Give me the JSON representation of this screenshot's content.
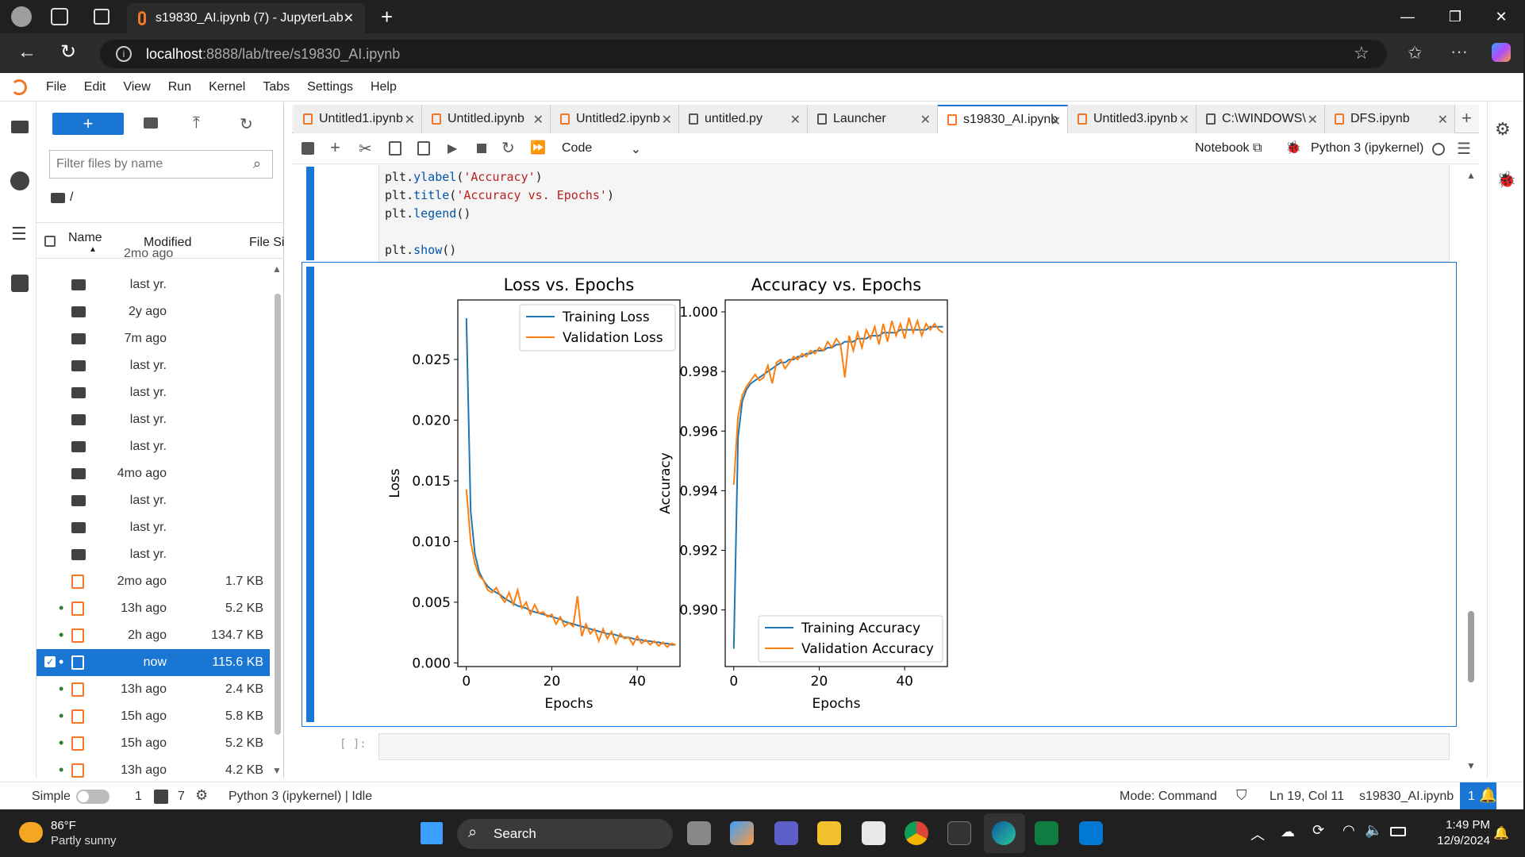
{
  "browser": {
    "tab_title": "s19830_AI.ipynb (7) - JupyterLab",
    "url_host": "localhost",
    "url_rest": ":8888/lab/tree/s19830_AI.ipynb"
  },
  "menu": [
    "File",
    "Edit",
    "View",
    "Run",
    "Kernel",
    "Tabs",
    "Settings",
    "Help"
  ],
  "file_browser": {
    "filter_placeholder": "Filter files by name",
    "path": "/",
    "col_name": "Name",
    "col_modified": "Modified",
    "col_size": "File Si",
    "partial_top": "2mo ago",
    "rows": [
      {
        "modified": "last yr.",
        "size": "",
        "type": "folder",
        "running": false,
        "selected": false
      },
      {
        "modified": "2y ago",
        "size": "",
        "type": "folder",
        "running": false,
        "selected": false
      },
      {
        "modified": "7m ago",
        "size": "",
        "type": "folder",
        "running": false,
        "selected": false
      },
      {
        "modified": "last yr.",
        "size": "",
        "type": "folder",
        "running": false,
        "selected": false
      },
      {
        "modified": "last yr.",
        "size": "",
        "type": "folder",
        "running": false,
        "selected": false
      },
      {
        "modified": "last yr.",
        "size": "",
        "type": "folder",
        "running": false,
        "selected": false
      },
      {
        "modified": "last yr.",
        "size": "",
        "type": "folder",
        "running": false,
        "selected": false
      },
      {
        "modified": "4mo ago",
        "size": "",
        "type": "folder",
        "running": false,
        "selected": false
      },
      {
        "modified": "last yr.",
        "size": "",
        "type": "folder",
        "running": false,
        "selected": false
      },
      {
        "modified": "last yr.",
        "size": "",
        "type": "folder",
        "running": false,
        "selected": false
      },
      {
        "modified": "last yr.",
        "size": "",
        "type": "folder",
        "running": false,
        "selected": false
      },
      {
        "modified": "2mo ago",
        "size": "1.7 KB",
        "type": "notebook",
        "running": false,
        "selected": false
      },
      {
        "modified": "13h ago",
        "size": "5.2 KB",
        "type": "notebook",
        "running": true,
        "selected": false
      },
      {
        "modified": "2h ago",
        "size": "134.7 KB",
        "type": "notebook",
        "running": true,
        "selected": false
      },
      {
        "modified": "now",
        "size": "115.6 KB",
        "type": "notebook",
        "running": true,
        "selected": true
      },
      {
        "modified": "13h ago",
        "size": "2.4 KB",
        "type": "notebook",
        "running": true,
        "selected": false
      },
      {
        "modified": "15h ago",
        "size": "5.8 KB",
        "type": "notebook",
        "running": true,
        "selected": false
      },
      {
        "modified": "15h ago",
        "size": "5.2 KB",
        "type": "notebook",
        "running": true,
        "selected": false
      },
      {
        "modified": "13h ago",
        "size": "4.2 KB",
        "type": "notebook",
        "running": true,
        "selected": false
      }
    ]
  },
  "doc_tabs": [
    {
      "label": "Untitled1.ipynb",
      "icon": "notebook-icon",
      "active": false,
      "close": "✕"
    },
    {
      "label": "Untitled.ipynb",
      "icon": "notebook-icon",
      "active": false,
      "close": "✕"
    },
    {
      "label": "Untitled2.ipynb",
      "icon": "notebook-icon",
      "active": false,
      "close": "✕"
    },
    {
      "label": "untitled.py",
      "icon": "text-file-icon",
      "active": false,
      "close": "✕"
    },
    {
      "label": "Launcher",
      "icon": "launcher-icon",
      "active": false,
      "close": "✕"
    },
    {
      "label": "s19830_AI.ipynb",
      "icon": "notebook-icon",
      "active": true,
      "close": "✕"
    },
    {
      "label": "Untitled3.ipynb",
      "icon": "notebook-icon",
      "active": false,
      "close": "✕"
    },
    {
      "label": "C:\\WINDOWS\\",
      "icon": "terminal-icon",
      "active": false,
      "close": "✕"
    },
    {
      "label": "DFS.ipynb",
      "icon": "notebook-icon",
      "active": false,
      "close": "✕"
    }
  ],
  "notebook_toolbar": {
    "cell_type": "Code",
    "notebook_label": "Notebook",
    "kernel": "Python 3 (ipykernel)"
  },
  "code_lines": [
    {
      "fn": "plt",
      "method": "ylabel",
      "arg": "'Accuracy'"
    },
    {
      "fn": "plt",
      "method": "title",
      "arg": "'Accuracy vs. Epochs'"
    },
    {
      "fn": "plt",
      "method": "legend",
      "arg": ""
    },
    {
      "fn": "",
      "method": "",
      "arg": ""
    },
    {
      "fn": "plt",
      "method": "show",
      "arg": ""
    }
  ],
  "empty_prompt": "[ ]:",
  "status": {
    "mode_label": "Simple",
    "num1": "1",
    "num2": "7",
    "kernel_status": "Python 3 (ipykernel) | Idle",
    "mode": "Mode: Command",
    "cursor": "Ln 19, Col 11",
    "file": "s19830_AI.ipynb",
    "notifications": "1"
  },
  "taskbar": {
    "temp": "86°F",
    "weather": "Partly sunny",
    "search": "Search",
    "time": "1:49 PM",
    "date": "12/9/2024"
  },
  "chart_data": [
    {
      "type": "line",
      "title": "Loss vs. Epochs",
      "xlabel": "Epochs",
      "ylabel": "Loss",
      "xlim": [
        -2,
        50
      ],
      "ylim": [
        -0.0003,
        0.0299
      ],
      "xticks": [
        "0",
        "20",
        "40"
      ],
      "yticks": [
        "0.000",
        "0.005",
        "0.010",
        "0.015",
        "0.020",
        "0.025"
      ],
      "legend": "top-right",
      "series": [
        {
          "name": "Training Loss",
          "color": "#1f77b4",
          "values": [
            0.0284,
            0.0125,
            0.009,
            0.0075,
            0.0068,
            0.0063,
            0.006,
            0.0058,
            0.0056,
            0.0053,
            0.0051,
            0.0049,
            0.0047,
            0.0046,
            0.0045,
            0.0043,
            0.0042,
            0.0041,
            0.004,
            0.0039,
            0.0038,
            0.0037,
            0.0036,
            0.0034,
            0.0033,
            0.0032,
            0.0031,
            0.003,
            0.0029,
            0.0028,
            0.0027,
            0.0026,
            0.0025,
            0.0024,
            0.0024,
            0.0023,
            0.0022,
            0.0021,
            0.0021,
            0.002,
            0.0019,
            0.0019,
            0.0018,
            0.0018,
            0.0017,
            0.0017,
            0.0016,
            0.0016,
            0.0015,
            0.0015
          ]
        },
        {
          "name": "Validation Loss",
          "color": "#ff7f0e",
          "values": [
            0.0143,
            0.01,
            0.0082,
            0.0072,
            0.0068,
            0.006,
            0.0058,
            0.0062,
            0.0055,
            0.005,
            0.0058,
            0.0048,
            0.006,
            0.0045,
            0.005,
            0.004,
            0.0048,
            0.0041,
            0.0042,
            0.0038,
            0.004,
            0.0032,
            0.0038,
            0.003,
            0.0033,
            0.003,
            0.0055,
            0.0022,
            0.0032,
            0.0024,
            0.0028,
            0.0018,
            0.0028,
            0.002,
            0.0026,
            0.0016,
            0.0024,
            0.002,
            0.0021,
            0.0015,
            0.0022,
            0.0016,
            0.0019,
            0.0015,
            0.0018,
            0.0014,
            0.0017,
            0.0013,
            0.0016,
            0.0015
          ]
        }
      ]
    },
    {
      "type": "line",
      "title": "Accuracy vs. Epochs",
      "xlabel": "Epochs",
      "ylabel": "Accuracy",
      "xlim": [
        -2,
        50
      ],
      "ylim": [
        0.9881,
        1.0004
      ],
      "xticks": [
        "0",
        "20",
        "40"
      ],
      "yticks": [
        "0.990",
        "0.992",
        "0.994",
        "0.996",
        "0.998",
        "1.000"
      ],
      "legend": "bottom-right",
      "series": [
        {
          "name": "Training Accuracy",
          "color": "#1f77b4",
          "values": [
            0.9887,
            0.9958,
            0.997,
            0.9974,
            0.9976,
            0.9977,
            0.9978,
            0.9979,
            0.998,
            0.9981,
            0.9982,
            0.9983,
            0.9983,
            0.9984,
            0.9984,
            0.9985,
            0.9985,
            0.9986,
            0.9986,
            0.9987,
            0.9987,
            0.9987,
            0.9988,
            0.9988,
            0.9989,
            0.9989,
            0.999,
            0.999,
            0.999,
            0.9991,
            0.9991,
            0.9991,
            0.9992,
            0.9992,
            0.9992,
            0.9993,
            0.9993,
            0.9993,
            0.9993,
            0.9994,
            0.9994,
            0.9994,
            0.9994,
            0.9994,
            0.9994,
            0.9994,
            0.9995,
            0.9995,
            0.9995,
            0.9995
          ]
        },
        {
          "name": "Validation Accuracy",
          "color": "#ff7f0e",
          "values": [
            0.9942,
            0.9965,
            0.9972,
            0.9975,
            0.9977,
            0.9979,
            0.9977,
            0.9978,
            0.9982,
            0.9976,
            0.9983,
            0.9984,
            0.9981,
            0.9983,
            0.9985,
            0.9984,
            0.9986,
            0.9985,
            0.9987,
            0.9986,
            0.9988,
            0.9987,
            0.999,
            0.9988,
            0.9991,
            0.9989,
            0.9978,
            0.9992,
            0.9987,
            0.9993,
            0.9988,
            0.9994,
            0.9991,
            0.9995,
            0.9989,
            0.9996,
            0.999,
            0.9997,
            0.9992,
            0.9996,
            0.9991,
            0.9998,
            0.9993,
            0.9997,
            0.9992,
            0.9996,
            0.9994,
            0.9996,
            0.9994,
            0.9993
          ]
        }
      ]
    }
  ]
}
